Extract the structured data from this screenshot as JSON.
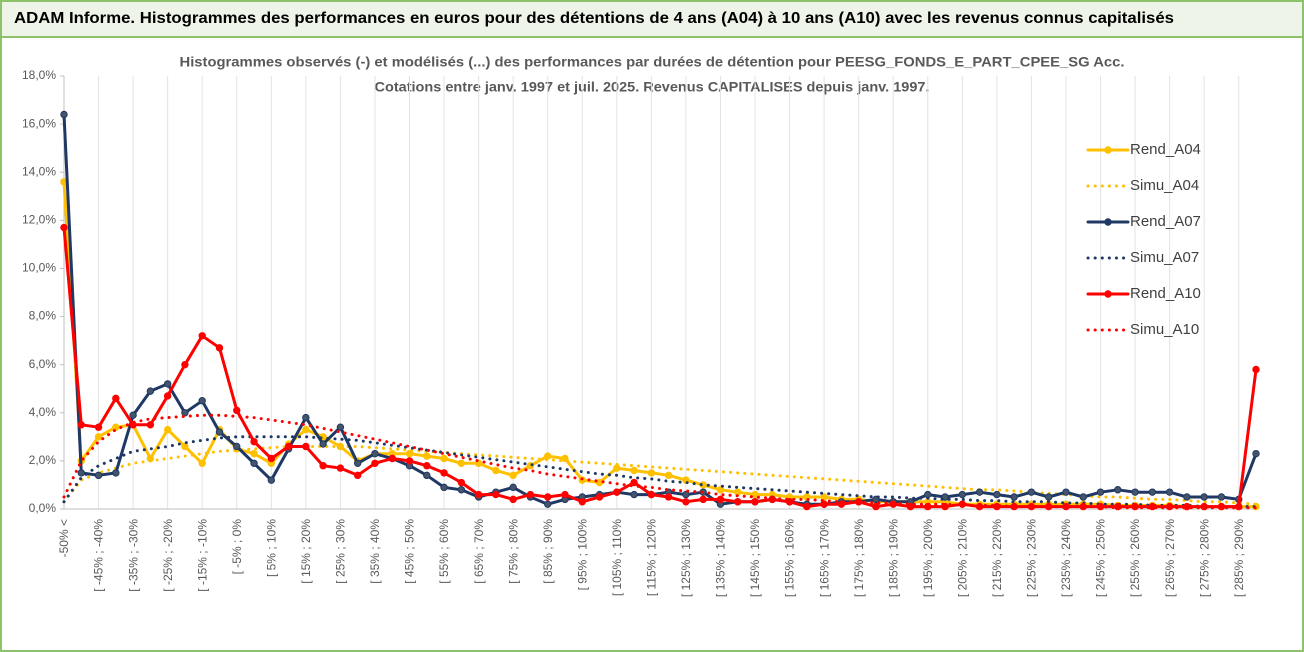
{
  "chart_data": {
    "type": "line",
    "title": "ADAM Informe. Histogrammes des performances en euros pour des détentions de 4 ans (A04) à 10 ans (A10) avec les revenus connus capitalisés",
    "subtitle": [
      "Histogrammes observés (-) et modélisés (...) des performances par durées de détention pour PEESG_FONDS_E_PART_CPEE_SG Acc.",
      "Cotations entre janv. 1997 et juil. 2025. Revenus CAPITALISES depuis janv. 1997."
    ],
    "categories": [
      "-50% <",
      null,
      "[ -45% ; -40%",
      null,
      "[ -35% ; -30%",
      null,
      "[ -25% ; -20%",
      null,
      "[ -15% ; -10%",
      null,
      "[ -5% ; 0%",
      null,
      "[ 5% ; 10%",
      null,
      "[ 15% ; 20%",
      null,
      "[ 25% ; 30%",
      null,
      "[ 35% ; 40%",
      null,
      "[ 45% ; 50%",
      null,
      "[ 55% ; 60%",
      null,
      "[ 65% ; 70%",
      null,
      "[ 75% ; 80%",
      null,
      "[ 85% ; 90%",
      null,
      "[ 95% ; 100%",
      null,
      "[ 105% ; 110%",
      null,
      "[ 115% ; 120%",
      null,
      "[ 125% ; 130%",
      null,
      "[ 135% ; 140%",
      null,
      "[ 145% ; 150%",
      null,
      "[ 155% ; 160%",
      null,
      "[ 165% ; 170%",
      null,
      "[ 175% ; 180%",
      null,
      "[ 185% ; 190%",
      null,
      "[ 195% ; 200%",
      null,
      "[ 205% ; 210%",
      null,
      "[ 215% ; 220%",
      null,
      "[ 225% ; 230%",
      null,
      "[ 235% ; 240%",
      null,
      "[ 245% ; 250%",
      null,
      "[ 255% ; 260%",
      null,
      "[ 265% ; 270%",
      null,
      "[ 275% ; 280%",
      null,
      "[ 285% ; 290%",
      null
    ],
    "series": [
      {
        "name": "Rend_A04",
        "color": "#ffc000",
        "style": "solid",
        "markers": true,
        "values": [
          13.6,
          2.0,
          3.0,
          3.4,
          3.5,
          2.1,
          3.3,
          2.6,
          1.9,
          3.3,
          2.5,
          2.3,
          1.9,
          2.7,
          3.3,
          3.0,
          2.6,
          2.0,
          2.3,
          2.3,
          2.3,
          2.2,
          2.1,
          1.9,
          1.9,
          1.6,
          1.4,
          1.8,
          2.2,
          2.1,
          1.2,
          1.1,
          1.7,
          1.6,
          1.5,
          1.4,
          1.2,
          1.0,
          0.8,
          0.7,
          0.6,
          0.6,
          0.5,
          0.5,
          0.5,
          0.4,
          0.4,
          0.3,
          0.3,
          0.3,
          0.3,
          0.3,
          0.2,
          0.2,
          0.2,
          0.2,
          0.2,
          0.2,
          0.2,
          0.2,
          0.2,
          0.15,
          0.15,
          0.15,
          0.15,
          0.1,
          0.1,
          0.1,
          0.1,
          0.1
        ]
      },
      {
        "name": "Simu_A04",
        "color": "#ffc000",
        "style": "dotted",
        "markers": false,
        "values": [
          0.3,
          1.2,
          1.5,
          1.7,
          1.9,
          2.0,
          2.1,
          2.2,
          2.3,
          2.4,
          2.45,
          2.5,
          2.55,
          2.6,
          2.6,
          2.6,
          2.6,
          2.6,
          2.55,
          2.5,
          2.45,
          2.4,
          2.35,
          2.3,
          2.25,
          2.2,
          2.15,
          2.1,
          2.05,
          2.0,
          1.95,
          1.9,
          1.85,
          1.8,
          1.75,
          1.7,
          1.65,
          1.6,
          1.55,
          1.5,
          1.45,
          1.4,
          1.35,
          1.3,
          1.25,
          1.2,
          1.15,
          1.1,
          1.05,
          1.0,
          0.95,
          0.9,
          0.85,
          0.8,
          0.8,
          0.75,
          0.7,
          0.65,
          0.6,
          0.55,
          0.5,
          0.5,
          0.45,
          0.4,
          0.4,
          0.35,
          0.3,
          0.3,
          0.25,
          0.2
        ]
      },
      {
        "name": "Rend_A07",
        "color": "#1f3864",
        "style": "solid",
        "markers": true,
        "values": [
          16.4,
          1.5,
          1.4,
          1.5,
          3.9,
          4.9,
          5.2,
          4.0,
          4.5,
          3.2,
          2.6,
          1.9,
          1.2,
          2.5,
          3.8,
          2.7,
          3.4,
          1.9,
          2.3,
          2.1,
          1.8,
          1.4,
          0.9,
          0.8,
          0.5,
          0.7,
          0.9,
          0.5,
          0.2,
          0.4,
          0.5,
          0.6,
          0.7,
          0.6,
          0.6,
          0.7,
          0.6,
          0.7,
          0.2,
          0.3,
          0.3,
          0.4,
          0.3,
          0.2,
          0.2,
          0.3,
          0.3,
          0.4,
          0.3,
          0.3,
          0.6,
          0.5,
          0.6,
          0.7,
          0.6,
          0.5,
          0.7,
          0.5,
          0.7,
          0.5,
          0.7,
          0.8,
          0.7,
          0.7,
          0.7,
          0.5,
          0.5,
          0.5,
          0.4,
          2.3
        ]
      },
      {
        "name": "Simu_A07",
        "color": "#1f3864",
        "style": "dotted",
        "markers": false,
        "values": [
          0.3,
          1.3,
          1.8,
          2.1,
          2.4,
          2.5,
          2.6,
          2.75,
          2.85,
          2.95,
          3.0,
          3.0,
          3.0,
          3.0,
          3.0,
          2.95,
          2.9,
          2.85,
          2.75,
          2.65,
          2.55,
          2.45,
          2.35,
          2.25,
          2.15,
          2.05,
          1.95,
          1.85,
          1.75,
          1.65,
          1.55,
          1.45,
          1.4,
          1.3,
          1.25,
          1.15,
          1.1,
          1.0,
          0.95,
          0.9,
          0.85,
          0.8,
          0.75,
          0.7,
          0.65,
          0.6,
          0.55,
          0.5,
          0.5,
          0.45,
          0.45,
          0.4,
          0.4,
          0.35,
          0.35,
          0.3,
          0.3,
          0.3,
          0.25,
          0.25,
          0.2,
          0.2,
          0.2,
          0.15,
          0.15,
          0.15,
          0.1,
          0.1,
          0.1,
          0.1
        ]
      },
      {
        "name": "Rend_A10",
        "color": "#ff0000",
        "style": "solid",
        "markers": true,
        "values": [
          11.7,
          3.5,
          3.4,
          4.6,
          3.5,
          3.5,
          4.7,
          6.0,
          7.2,
          6.7,
          4.1,
          2.8,
          2.1,
          2.6,
          2.6,
          1.8,
          1.7,
          1.4,
          1.9,
          2.1,
          2.0,
          1.8,
          1.5,
          1.1,
          0.6,
          0.6,
          0.4,
          0.6,
          0.5,
          0.6,
          0.3,
          0.5,
          0.7,
          1.1,
          0.6,
          0.5,
          0.3,
          0.4,
          0.4,
          0.3,
          0.3,
          0.4,
          0.3,
          0.1,
          0.2,
          0.2,
          0.3,
          0.1,
          0.2,
          0.1,
          0.1,
          0.1,
          0.2,
          0.1,
          0.1,
          0.1,
          0.1,
          0.1,
          0.1,
          0.1,
          0.1,
          0.1,
          0.1,
          0.1,
          0.1,
          0.1,
          0.1,
          0.1,
          0.1,
          5.8
        ]
      },
      {
        "name": "Simu_A10",
        "color": "#ff0000",
        "style": "dotted",
        "markers": false,
        "values": [
          0.5,
          2.0,
          2.8,
          3.3,
          3.6,
          3.75,
          3.8,
          3.85,
          3.9,
          3.9,
          3.85,
          3.8,
          3.7,
          3.6,
          3.5,
          3.35,
          3.2,
          3.05,
          2.9,
          2.75,
          2.6,
          2.45,
          2.3,
          2.15,
          2.0,
          1.85,
          1.7,
          1.6,
          1.45,
          1.35,
          1.25,
          1.15,
          1.05,
          0.95,
          0.9,
          0.8,
          0.75,
          0.7,
          0.6,
          0.55,
          0.5,
          0.45,
          0.4,
          0.4,
          0.35,
          0.3,
          0.3,
          0.25,
          0.25,
          0.2,
          0.2,
          0.2,
          0.15,
          0.15,
          0.15,
          0.1,
          0.1,
          0.1,
          0.1,
          0.1,
          0.1,
          0.05,
          0.05,
          0.05,
          0.05,
          0.05,
          0.05,
          0.05,
          0.05,
          0.05
        ]
      }
    ],
    "ylim": [
      0,
      18
    ],
    "yticks": [
      {
        "value": 0,
        "label": "0,0%"
      },
      {
        "value": 2,
        "label": "2,0%"
      },
      {
        "value": 4,
        "label": "4,0%"
      },
      {
        "value": 6,
        "label": "6,0%"
      },
      {
        "value": 8,
        "label": "8,0%"
      },
      {
        "value": 10,
        "label": "10,0%"
      },
      {
        "value": 12,
        "label": "12,0%"
      },
      {
        "value": 14,
        "label": "14,0%"
      },
      {
        "value": 16,
        "label": "16,0%"
      },
      {
        "value": 18,
        "label": "18,0%"
      }
    ],
    "legend_position": "right",
    "category_grid": true
  }
}
